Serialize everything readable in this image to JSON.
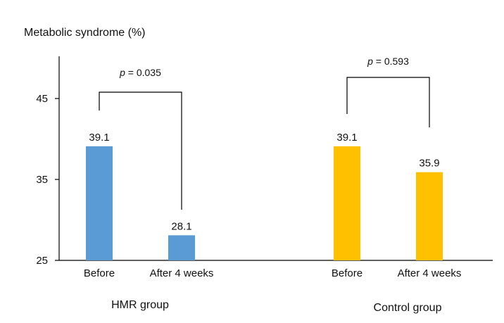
{
  "chart_data": {
    "type": "bar",
    "ylabel": "Metabolic syndrome (%)",
    "ylim": [
      25,
      49
    ],
    "yticks": [
      25,
      35,
      45
    ],
    "grid": false,
    "groups": [
      {
        "label": "HMR group",
        "color": "#5B9BD5",
        "bars": [
          {
            "category": "Before",
            "value": 39.1,
            "label": "39.1"
          },
          {
            "category": "After 4 weeks",
            "value": 28.1,
            "label": "28.1"
          }
        ],
        "p_value": {
          "p": "p",
          "text": " = 0.035"
        }
      },
      {
        "label": "Control group",
        "color": "#FFC000",
        "bars": [
          {
            "category": "Before",
            "value": 39.1,
            "label": "39.1"
          },
          {
            "category": "After 4 weeks",
            "value": 35.9,
            "label": "35.9"
          }
        ],
        "p_value": {
          "p": "p",
          "text": " = 0.593"
        }
      }
    ]
  }
}
